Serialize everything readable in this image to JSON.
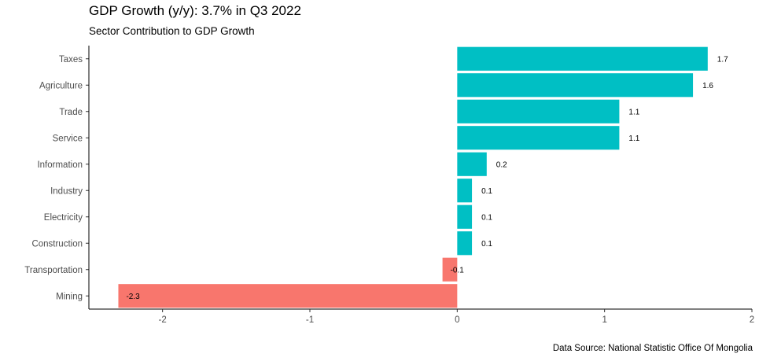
{
  "chart_data": {
    "type": "bar",
    "orientation": "horizontal",
    "title": "GDP Growth (y/y): 3.7% in Q3 2022",
    "subtitle": "Sector Contribution to GDP Growth",
    "caption": "Data Source: National Statistic Office Of Mongolia",
    "categories": [
      "Taxes",
      "Agriculture",
      "Trade",
      "Service",
      "Information",
      "Industry",
      "Electricity",
      "Construction",
      "Transportation",
      "Mining"
    ],
    "values": [
      1.7,
      1.6,
      1.1,
      1.1,
      0.2,
      0.1,
      0.1,
      0.1,
      -0.1,
      -2.3
    ],
    "data_labels": [
      "1.7",
      "1.6",
      "1.1",
      "1.1",
      "0.2",
      "0.1",
      "0.1",
      "0.1",
      "-0.1",
      "-2.3"
    ],
    "xlim": [
      -2.5,
      2
    ],
    "xticks": [
      -2,
      -1,
      0,
      1,
      2
    ],
    "xtick_labels": [
      "-2",
      "-1",
      "0",
      "1",
      "2"
    ],
    "xlabel": "",
    "ylabel": "",
    "grid": false,
    "legend": "none",
    "colors": {
      "positive": "#00BFC4",
      "negative": "#F8766D"
    }
  }
}
